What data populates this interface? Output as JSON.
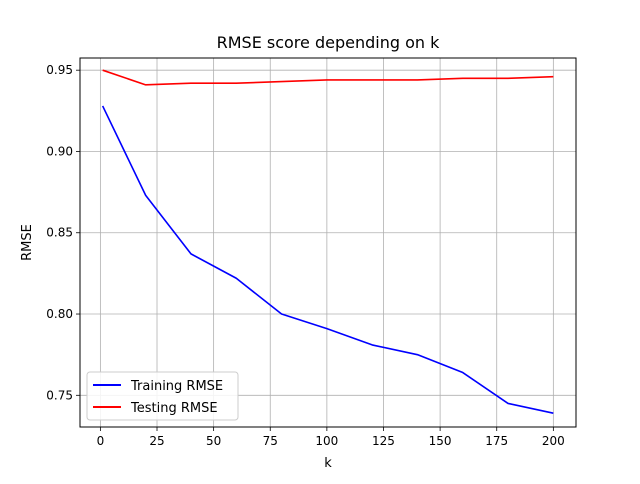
{
  "chart_data": {
    "type": "line",
    "title": "RMSE score depending on k",
    "xlabel": "k",
    "ylabel": "RMSE",
    "xlim": [
      -9,
      210
    ],
    "ylim": [
      0.7305,
      0.9575
    ],
    "xticks": [
      0,
      25,
      50,
      75,
      100,
      125,
      150,
      175,
      200
    ],
    "xtick_labels": [
      "0",
      "25",
      "50",
      "75",
      "100",
      "125",
      "150",
      "175",
      "200"
    ],
    "yticks": [
      0.75,
      0.8,
      0.85,
      0.9,
      0.95
    ],
    "ytick_labels": [
      "0.75",
      "0.80",
      "0.85",
      "0.90",
      "0.95"
    ],
    "grid": true,
    "legend_position": "lower-left",
    "x": [
      1,
      20,
      40,
      60,
      80,
      100,
      120,
      140,
      160,
      180,
      200
    ],
    "series": [
      {
        "name": "Training RMSE",
        "color": "#0000ff",
        "values": [
          0.928,
          0.873,
          0.837,
          0.822,
          0.8,
          0.791,
          0.781,
          0.775,
          0.764,
          0.745,
          0.739
        ]
      },
      {
        "name": "Testing RMSE",
        "color": "#ff0000",
        "values": [
          0.95,
          0.941,
          0.942,
          0.942,
          0.943,
          0.944,
          0.944,
          0.944,
          0.945,
          0.945,
          0.946
        ]
      }
    ]
  }
}
